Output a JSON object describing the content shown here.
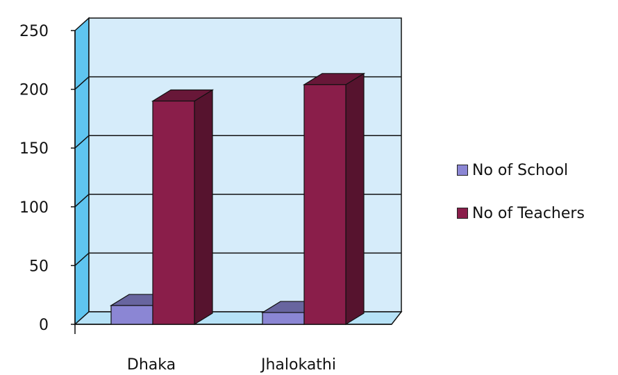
{
  "chart_data": {
    "type": "bar",
    "categories": [
      "Dhaka",
      "Jhalokathi"
    ],
    "series": [
      {
        "name": "No of School",
        "values": [
          16,
          10
        ]
      },
      {
        "name": "No of Teachers",
        "values": [
          190,
          204
        ]
      }
    ],
    "ylim": [
      0,
      250
    ],
    "yticks": [
      "250",
      "200",
      "150",
      "100",
      "50",
      "0"
    ],
    "grid": true,
    "legend_position": "right",
    "colors": {
      "No of School": "#8b86d4",
      "No of Teachers": "#8a1e4a",
      "wall": "#d6ecfa",
      "side_wall": "#5fc5f0",
      "floor": "#b7e2f7"
    }
  }
}
